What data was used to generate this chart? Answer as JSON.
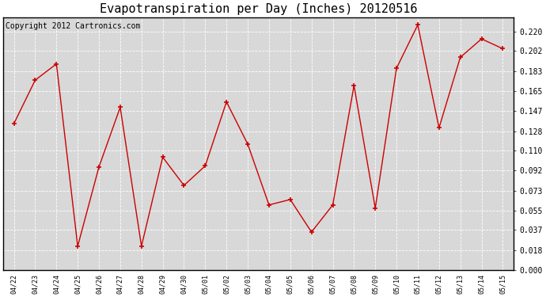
{
  "title": "Evapotranspiration per Day (Inches) 20120516",
  "copyright": "Copyright 2012 Cartronics.com",
  "x_labels": [
    "04/22",
    "04/23",
    "04/24",
    "04/25",
    "04/26",
    "04/27",
    "04/28",
    "04/29",
    "04/30",
    "05/01",
    "05/02",
    "05/03",
    "05/04",
    "05/05",
    "05/06",
    "05/07",
    "05/08",
    "05/09",
    "05/10",
    "05/11",
    "05/12",
    "05/13",
    "05/14",
    "05/15"
  ],
  "y_values": [
    0.135,
    0.175,
    0.19,
    0.022,
    0.095,
    0.15,
    0.022,
    0.104,
    0.078,
    0.096,
    0.155,
    0.116,
    0.06,
    0.065,
    0.035,
    0.06,
    0.17,
    0.057,
    0.186,
    0.226,
    0.131,
    0.196,
    0.213,
    0.204
  ],
  "line_color": "#cc0000",
  "marker_color": "#cc0000",
  "marker_size": 5,
  "background_color": "#d8d8d8",
  "grid_color": "#ffffff",
  "title_fontsize": 11,
  "copyright_fontsize": 7,
  "yticks": [
    0.0,
    0.018,
    0.037,
    0.055,
    0.073,
    0.092,
    0.11,
    0.128,
    0.147,
    0.165,
    0.183,
    0.202,
    0.22
  ],
  "ylim": [
    0.0,
    0.233
  ],
  "ytick_fontsize": 7,
  "xtick_fontsize": 6
}
